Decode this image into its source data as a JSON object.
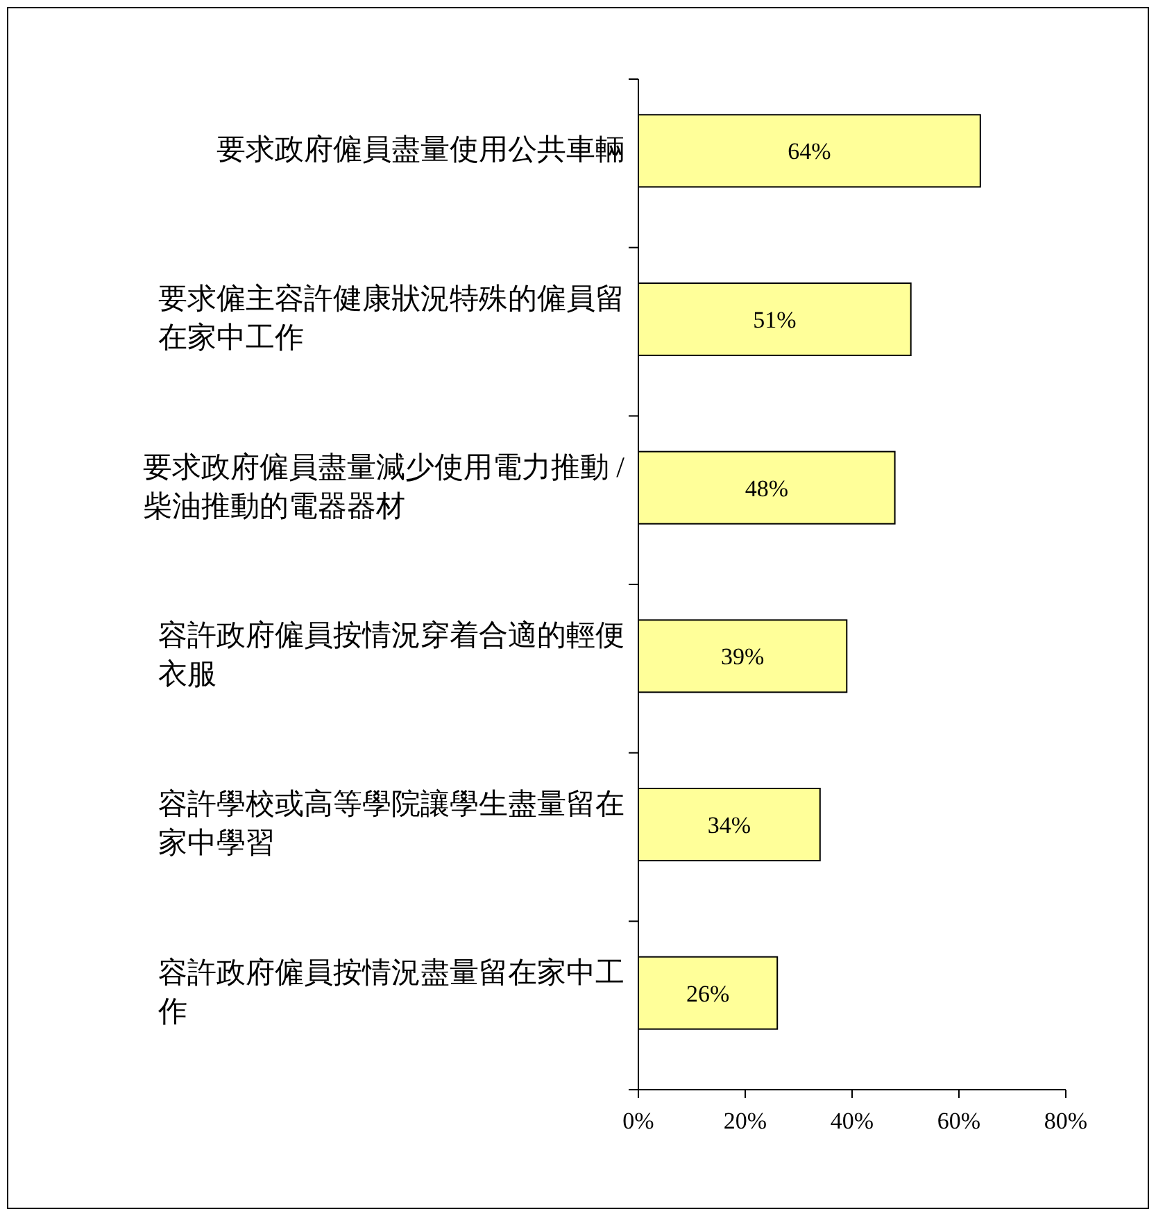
{
  "chart_data": {
    "type": "bar",
    "orientation": "horizontal",
    "categories": [
      "要求政府僱員盡量使用公共車輛",
      "要求僱主容許健康狀況特殊的僱員留在家中工作",
      "要求政府僱員盡量減少使用電力推動 / 柴油推動的電器器材",
      "容許政府僱員按情況穿着合適的輕便衣服",
      "容許學校或高等學院讓學生盡量留在家中學習",
      "容許政府僱員按情況盡量留在家中工作"
    ],
    "values": [
      64,
      51,
      48,
      39,
      34,
      26
    ],
    "value_labels": [
      "64%",
      "51%",
      "48%",
      "39%",
      "34%",
      "26%"
    ],
    "color": "#ffff99",
    "xlim": [
      0,
      80
    ],
    "xticks": [
      {
        "value": 0,
        "label": "0%"
      },
      {
        "value": 20,
        "label": "20%"
      },
      {
        "value": 40,
        "label": "40%"
      },
      {
        "value": 60,
        "label": "60%"
      },
      {
        "value": 80,
        "label": "80%"
      }
    ],
    "grid": false
  }
}
